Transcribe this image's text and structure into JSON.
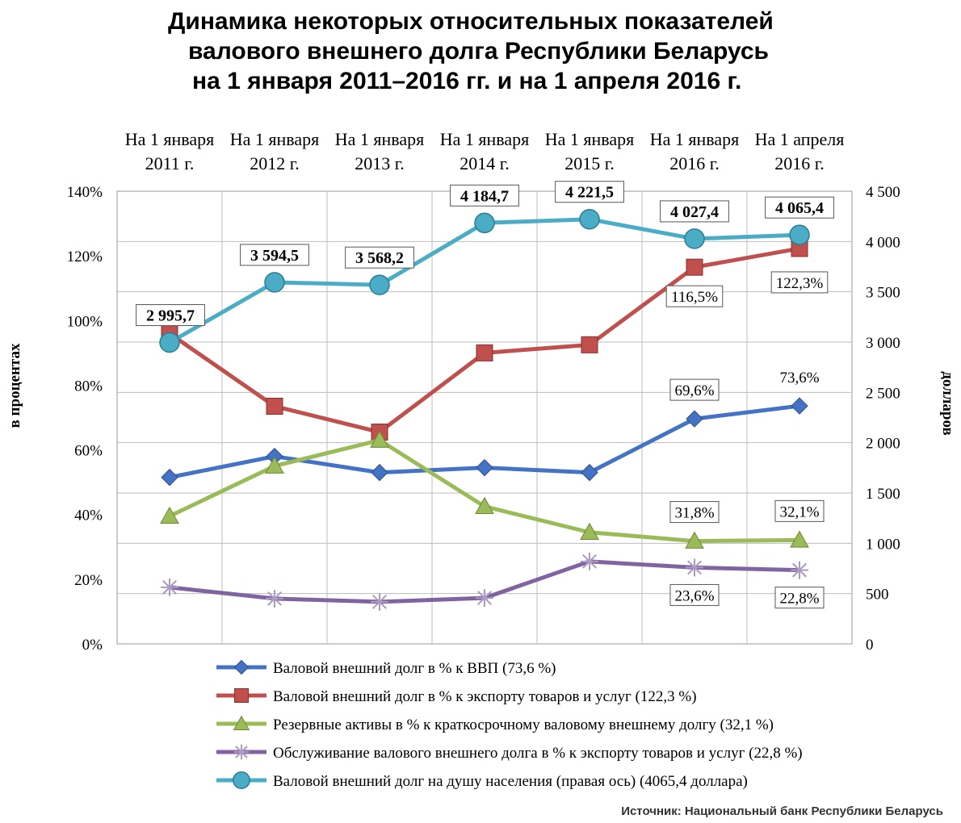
{
  "title_lines": [
    "Динамика некоторых относительных показателей",
    "валового внешнего долга Республики Беларусь",
    "на 1 января 2011–2016 гг. и на 1 апреля 2016 г."
  ],
  "source": "Источник: Национальный банк Республики Беларусь",
  "chart_data": {
    "type": "line",
    "title": "Динамика некоторых относительных показателей валового внешнего долга Республики Беларусь на 1 января 2011–2016 гг. и на 1 апреля 2016 г.",
    "categories": [
      [
        "На 1 января",
        "2011 г."
      ],
      [
        "На 1 января",
        "2012 г."
      ],
      [
        "На 1 января",
        "2013 г."
      ],
      [
        "На 1 января",
        "2014 г."
      ],
      [
        "На 1 января",
        "2015 г."
      ],
      [
        "На 1 января",
        "2016 г."
      ],
      [
        "На 1 апреля",
        "2016 г."
      ]
    ],
    "ylabel_left": "в процентах",
    "ylabel_right": "долларов",
    "ylim_left": [
      0,
      140
    ],
    "ylim_right": [
      0,
      4500
    ],
    "yticks_left": [
      "0%",
      "20%",
      "40%",
      "60%",
      "80%",
      "100%",
      "120%",
      "140%"
    ],
    "yticks_right": [
      "0",
      "500",
      "1 000",
      "1 500",
      "2 000",
      "2 500",
      "3 000",
      "3 500",
      "4 000",
      "4 500"
    ],
    "grid": true,
    "legend_position": "bottom",
    "series": [
      {
        "name": "Валовой внешний долг в % к ВВП (73,6 %)",
        "axis": "left",
        "marker": "diamond",
        "color": "#4472C4",
        "values": [
          51.5,
          58,
          53,
          54.5,
          53,
          69.6,
          73.6
        ],
        "labels": [
          "",
          "",
          "",
          "",
          "",
          "69,6%",
          "73,6%"
        ]
      },
      {
        "name": "Валовой внешний долг в % к экспорту товаров и услуг (122,3 %)",
        "axis": "left",
        "marker": "square",
        "color": "#C0504D",
        "values": [
          96,
          73.5,
          65.5,
          90,
          92.5,
          116.5,
          122.3
        ],
        "labels": [
          "",
          "",
          "",
          "",
          "",
          "116,5%",
          "122,3%"
        ]
      },
      {
        "name": "Резервные активы в % к краткосрочному валовому внешнему долгу (32,1 %)",
        "axis": "left",
        "marker": "triangle",
        "color": "#9BBB59",
        "values": [
          39.5,
          55,
          63,
          42.5,
          34.5,
          31.8,
          32.1
        ],
        "labels": [
          "",
          "",
          "",
          "",
          "",
          "31,8%",
          "32,1%"
        ]
      },
      {
        "name": "Обслуживание валового внешнего долга в % к экспорту товаров и услуг (22,8 %)",
        "axis": "left",
        "marker": "star",
        "color": "#8064A2",
        "values": [
          17.5,
          14,
          13,
          14.2,
          25.5,
          23.6,
          22.8
        ],
        "labels": [
          "",
          "",
          "",
          "",
          "",
          "23,6%",
          "22,8%"
        ]
      },
      {
        "name": "Валовой внешний долг на душу населения (правая ось) (4065,4 доллара)",
        "axis": "right",
        "marker": "circle",
        "color": "#4BACC6",
        "values": [
          2995.7,
          3594.5,
          3568.2,
          4184.7,
          4221.5,
          4027.4,
          4065.4
        ],
        "labels": [
          "2 995,7",
          "3 594,5",
          "3 568,2",
          "4 184,7",
          "4 221,5",
          "4 027,4",
          "4 065,4"
        ]
      }
    ]
  }
}
